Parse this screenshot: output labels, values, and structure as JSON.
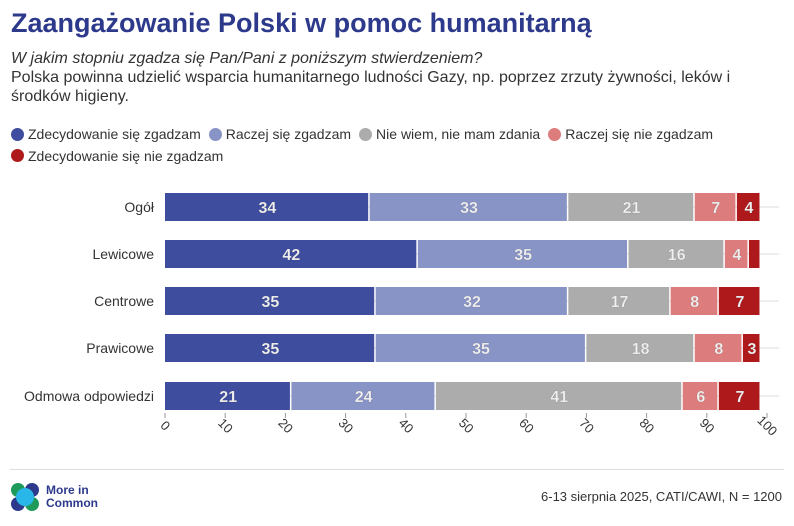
{
  "title": "Zaangażowanie Polski w pomoc humanitarną",
  "question": "W jakim stopniu zgadza się Pan/Pani z poniższym stwierdzeniem?",
  "statement": "Polska powinna udzielić wsparcia humanitarnego ludności Gazy, np. poprzez zrzuty żywności, leków i środków higieny.",
  "logo_text": [
    "More in",
    "Common"
  ],
  "source": "6-13 sierpnia 2025, CATI/CAWI, N = 1200",
  "chart_data": {
    "type": "bar",
    "orientation": "horizontal-stacked",
    "categories": [
      "Ogół",
      "Lewicowe",
      "Centrowe",
      "Prawicowe",
      "Odmowa odpowiedzi"
    ],
    "series": [
      {
        "name": "Zdecydowanie się zgadzam",
        "color": "#3f4d9e",
        "values": [
          34,
          42,
          35,
          35,
          21
        ],
        "labels": [
          "34",
          "42",
          "35",
          "35",
          "21"
        ]
      },
      {
        "name": "Raczej się zgadzam",
        "color": "#8893c6",
        "values": [
          33,
          35,
          32,
          35,
          24
        ],
        "labels": [
          "33",
          "35",
          "32",
          "35",
          "24"
        ]
      },
      {
        "name": "Nie wiem, nie mam zdania",
        "color": "#acacac",
        "values": [
          21,
          16,
          17,
          18,
          41
        ],
        "labels": [
          "21",
          "16",
          "17",
          "18",
          "41"
        ]
      },
      {
        "name": "Raczej się nie zgadzam",
        "color": "#dc7c7c",
        "values": [
          7,
          4,
          8,
          8,
          6
        ],
        "labels": [
          "7",
          "4",
          "8",
          "8",
          "6"
        ]
      },
      {
        "name": "Zdecydowanie się nie zgadzam",
        "color": "#ae1a1c",
        "values": [
          4,
          2,
          7,
          3,
          7
        ],
        "labels": [
          "4",
          "",
          "7",
          "3",
          "7"
        ]
      }
    ],
    "xlim": [
      0,
      100
    ],
    "xticks": [
      "0",
      "10",
      "20",
      "30",
      "40",
      "50",
      "60",
      "70",
      "80",
      "90",
      "100"
    ],
    "legend_position": "top"
  }
}
